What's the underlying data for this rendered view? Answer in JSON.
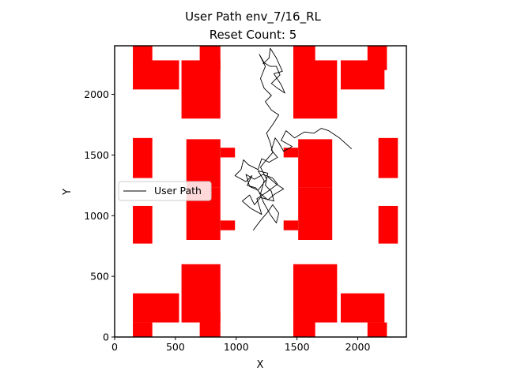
{
  "chart_data": {
    "type": "line",
    "title_line1": "User Path env_7/16_RL",
    "title_line2": "Reset Count: 5",
    "xlabel": "X",
    "ylabel": "Y",
    "xlim": [
      0,
      2400
    ],
    "ylim": [
      0,
      2400
    ],
    "xticks": [
      0,
      500,
      1000,
      1500,
      2000
    ],
    "yticks": [
      0,
      500,
      1000,
      1500,
      2000
    ],
    "legend": {
      "label": "User Path",
      "placement": "center-left"
    },
    "colors": {
      "obstacle": "#ff0000",
      "path": "#000000"
    },
    "obstacles": [
      {
        "x0": 150,
        "y0": 1310,
        "x1": 310,
        "y1": 1640
      },
      {
        "x0": 150,
        "y0": 770,
        "x1": 310,
        "y1": 1080
      },
      {
        "x0": 2170,
        "y0": 1310,
        "x1": 2330,
        "y1": 1640
      },
      {
        "x0": 2170,
        "y0": 770,
        "x1": 2330,
        "y1": 1080
      },
      {
        "x0": 150,
        "y0": 2040,
        "x1": 530,
        "y1": 2280
      },
      {
        "x0": 150,
        "y0": 2200,
        "x1": 310,
        "y1": 2400
      },
      {
        "x0": 550,
        "y0": 1800,
        "x1": 870,
        "y1": 2280
      },
      {
        "x0": 700,
        "y0": 2200,
        "x1": 870,
        "y1": 2400
      },
      {
        "x0": 1470,
        "y0": 1800,
        "x1": 1830,
        "y1": 2280
      },
      {
        "x0": 1470,
        "y0": 2200,
        "x1": 1650,
        "y1": 2400
      },
      {
        "x0": 1860,
        "y0": 2040,
        "x1": 2220,
        "y1": 2280
      },
      {
        "x0": 2080,
        "y0": 2200,
        "x1": 2240,
        "y1": 2400
      },
      {
        "x0": 590,
        "y0": 1230,
        "x1": 870,
        "y1": 1630
      },
      {
        "x0": 870,
        "y0": 1480,
        "x1": 990,
        "y1": 1560
      },
      {
        "x0": 590,
        "y0": 800,
        "x1": 870,
        "y1": 1230
      },
      {
        "x0": 870,
        "y0": 880,
        "x1": 990,
        "y1": 960
      },
      {
        "x0": 1510,
        "y0": 1230,
        "x1": 1790,
        "y1": 1630
      },
      {
        "x0": 1390,
        "y0": 1480,
        "x1": 1510,
        "y1": 1560
      },
      {
        "x0": 1510,
        "y0": 800,
        "x1": 1790,
        "y1": 1230
      },
      {
        "x0": 1390,
        "y0": 880,
        "x1": 1510,
        "y1": 960
      },
      {
        "x0": 550,
        "y0": 120,
        "x1": 870,
        "y1": 600
      },
      {
        "x0": 700,
        "y0": 0,
        "x1": 870,
        "y1": 200
      },
      {
        "x0": 1470,
        "y0": 120,
        "x1": 1830,
        "y1": 600
      },
      {
        "x0": 1470,
        "y0": 0,
        "x1": 1650,
        "y1": 200
      },
      {
        "x0": 150,
        "y0": 120,
        "x1": 530,
        "y1": 360
      },
      {
        "x0": 150,
        "y0": 0,
        "x1": 310,
        "y1": 120
      },
      {
        "x0": 1860,
        "y0": 120,
        "x1": 2220,
        "y1": 360
      },
      {
        "x0": 2080,
        "y0": 0,
        "x1": 2240,
        "y1": 120
      }
    ],
    "series": [
      {
        "name": "User Path",
        "points": [
          [
            1950,
            1550
          ],
          [
            1850,
            1640
          ],
          [
            1760,
            1700
          ],
          [
            1700,
            1720
          ],
          [
            1640,
            1680
          ],
          [
            1560,
            1690
          ],
          [
            1480,
            1640
          ],
          [
            1410,
            1700
          ],
          [
            1370,
            1620
          ],
          [
            1460,
            1570
          ],
          [
            1390,
            1530
          ],
          [
            1350,
            1600
          ],
          [
            1320,
            1640
          ],
          [
            1290,
            1540
          ],
          [
            1340,
            1480
          ],
          [
            1270,
            1440
          ],
          [
            1210,
            1470
          ],
          [
            1180,
            1380
          ],
          [
            1100,
            1420
          ],
          [
            1060,
            1460
          ],
          [
            1040,
            1380
          ],
          [
            990,
            1330
          ],
          [
            1080,
            1280
          ],
          [
            1130,
            1330
          ],
          [
            1090,
            1250
          ],
          [
            1160,
            1230
          ],
          [
            1200,
            1180
          ],
          [
            1230,
            1290
          ],
          [
            1180,
            1370
          ],
          [
            1260,
            1350
          ],
          [
            1240,
            1250
          ],
          [
            1290,
            1200
          ],
          [
            1310,
            1120
          ],
          [
            1200,
            1150
          ],
          [
            1150,
            1090
          ],
          [
            1110,
            1170
          ],
          [
            1050,
            1120
          ],
          [
            1120,
            1060
          ],
          [
            1210,
            1010
          ],
          [
            1170,
            1140
          ],
          [
            1260,
            1200
          ],
          [
            1340,
            1260
          ],
          [
            1300,
            1310
          ],
          [
            1220,
            1340
          ],
          [
            1150,
            1300
          ],
          [
            1080,
            1340
          ],
          [
            1110,
            1240
          ],
          [
            1180,
            1210
          ],
          [
            1250,
            1300
          ],
          [
            1200,
            1400
          ],
          [
            1240,
            1450
          ],
          [
            1300,
            1520
          ],
          [
            1280,
            1600
          ],
          [
            1250,
            1680
          ],
          [
            1300,
            1750
          ],
          [
            1350,
            1830
          ],
          [
            1290,
            1870
          ],
          [
            1240,
            1940
          ],
          [
            1290,
            1990
          ],
          [
            1230,
            2050
          ],
          [
            1200,
            2130
          ],
          [
            1240,
            2230
          ],
          [
            1190,
            2330
          ],
          [
            1230,
            2260
          ],
          [
            1280,
            2230
          ],
          [
            1330,
            2230
          ],
          [
            1360,
            2160
          ],
          [
            1290,
            2090
          ],
          [
            1340,
            2050
          ],
          [
            1400,
            2010
          ],
          [
            1370,
            2080
          ],
          [
            1310,
            2170
          ],
          [
            1380,
            2190
          ],
          [
            1330,
            2300
          ],
          [
            1280,
            2380
          ],
          [
            1270,
            2300
          ],
          [
            1220,
            2250
          ]
        ]
      },
      {
        "name": "User Path",
        "points": [
          [
            1140,
            880
          ],
          [
            1200,
            960
          ],
          [
            1260,
            1030
          ],
          [
            1300,
            1090
          ],
          [
            1350,
            1020
          ],
          [
            1330,
            940
          ],
          [
            1280,
            1010
          ],
          [
            1230,
            1100
          ],
          [
            1190,
            1190
          ],
          [
            1260,
            1130
          ],
          [
            1320,
            1180
          ],
          [
            1390,
            1220
          ],
          [
            1330,
            1260
          ],
          [
            1260,
            1320
          ]
        ]
      }
    ]
  }
}
